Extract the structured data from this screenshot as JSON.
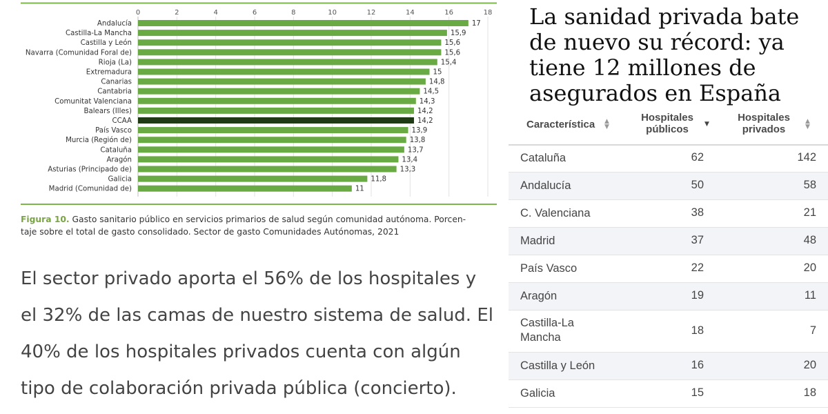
{
  "chart_data": {
    "type": "bar",
    "orientation": "horizontal",
    "categories": [
      "Andalucía",
      "Castilla-La Mancha",
      "Castilla y León",
      "Navarra (Comunidad Foral de)",
      "Rioja (La)",
      "Extremadura",
      "Canarias",
      "Cantabria",
      "Comunitat Valenciana",
      "Balears (Illes)",
      "CCAA",
      "País Vasco",
      "Murcia (Región de)",
      "Cataluña",
      "Aragón",
      "Asturias (Principado de)",
      "Galicia",
      "Madrid (Comunidad de)"
    ],
    "values": [
      17,
      15.9,
      15.6,
      15.6,
      15.4,
      15,
      14.8,
      14.5,
      14.3,
      14.2,
      14.2,
      13.9,
      13.8,
      13.7,
      13.4,
      13.3,
      11.8,
      11
    ],
    "value_labels": [
      "17",
      "15,9",
      "15,6",
      "15,6",
      "15,4",
      "15",
      "14,8",
      "14,5",
      "14,3",
      "14,2",
      "14,2",
      "13,9",
      "13,8",
      "13,7",
      "13,4",
      "13,3",
      "11,8",
      "11"
    ],
    "highlight_category": "CCAA",
    "xlim": [
      0,
      18
    ],
    "xticks": [
      "0",
      "2",
      "4",
      "6",
      "8",
      "10",
      "12",
      "14",
      "16",
      "18"
    ],
    "grid": true,
    "colors": {
      "bar": "#6aaa44",
      "highlight": "#1f3a14",
      "rule": "#7ab648"
    }
  },
  "figure_caption": {
    "label": "Figura 10.",
    "line1": "Gasto sanitario público en servicios primarios de salud según comunidad autónoma. Porcen-",
    "line2": "taje sobre el total de gasto consolidado. Sector de gasto Comunidades Autónomas, 2021"
  },
  "body_text": "El sector privado aporta el 56% de los hospitales y el 32% de las camas de nuestro sistema de salud. El 40% de los hospitales privados cuenta con algún tipo de colaboración privada pública (concierto).",
  "article": {
    "headline": "La sanidad privada bate de nuevo su récord: ya tiene 12 millones de asegurados en España",
    "table": {
      "headers": {
        "caracteristica": "Característica",
        "publicos": [
          "Hospitales",
          "públicos"
        ],
        "privados": [
          "Hospitales",
          "privados"
        ]
      },
      "rows": [
        {
          "name": "Cataluña",
          "publicos": "62",
          "privados": "142"
        },
        {
          "name": "Andalucía",
          "publicos": "50",
          "privados": "58"
        },
        {
          "name": "C. Valenciana",
          "publicos": "38",
          "privados": "21"
        },
        {
          "name": "Madrid",
          "publicos": "37",
          "privados": "48"
        },
        {
          "name": "País Vasco",
          "publicos": "22",
          "privados": "20"
        },
        {
          "name": "Aragón",
          "publicos": "19",
          "privados": "11"
        },
        {
          "name": "Castilla-La Mancha",
          "publicos": "18",
          "privados": "7"
        },
        {
          "name": "Castilla y León",
          "publicos": "16",
          "privados": "20"
        },
        {
          "name": "Galicia",
          "publicos": "15",
          "privados": "18"
        }
      ]
    }
  }
}
